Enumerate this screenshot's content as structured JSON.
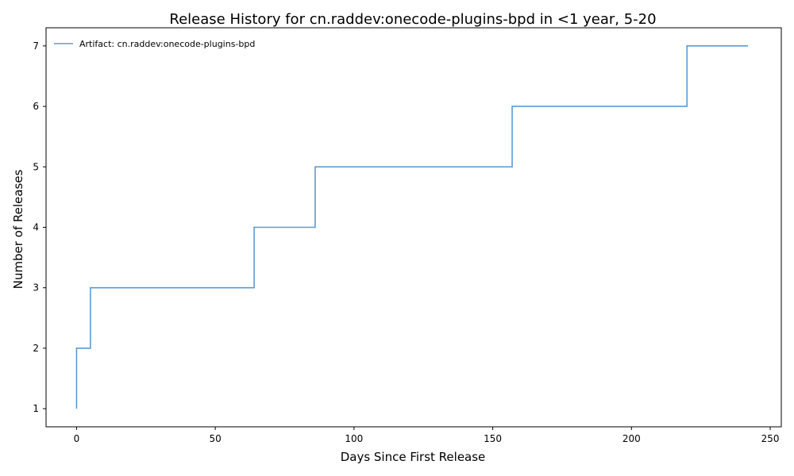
{
  "chart_data": {
    "type": "line",
    "step": "post",
    "title": "Release History for cn.raddev:onecode-plugins-bpd in <1 year, 5-20",
    "xlabel": "Days Since First Release",
    "ylabel": "Number of Releases",
    "xlim": [
      -11,
      254
    ],
    "ylim": [
      0.7,
      7.3
    ],
    "xticks": [
      0,
      50,
      100,
      150,
      200,
      250
    ],
    "yticks": [
      1,
      2,
      3,
      4,
      5,
      6,
      7
    ],
    "grid": false,
    "legend_position": "top-left",
    "series": [
      {
        "name": "Artifact: cn.raddev:onecode-plugins-bpd",
        "color": "#5b9bd5",
        "x": [
          0,
          0,
          5,
          64,
          86,
          157,
          220,
          242
        ],
        "y": [
          1,
          2,
          3,
          4,
          5,
          6,
          7,
          7
        ]
      }
    ]
  }
}
